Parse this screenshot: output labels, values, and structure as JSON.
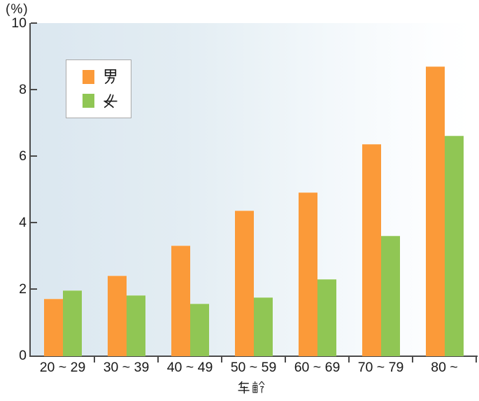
{
  "chart_data": {
    "type": "bar",
    "title": "",
    "categories": [
      "20 ~ 29",
      "30 ~ 39",
      "40 ~ 49",
      "50 ~ 59",
      "60 ~ 69",
      "70 ~ 79",
      "80 ~"
    ],
    "series": [
      {
        "name": "男",
        "key": "male",
        "color": "#FB9A39",
        "values": [
          1.7,
          2.4,
          3.3,
          4.35,
          4.9,
          6.35,
          8.7
        ]
      },
      {
        "name": "女",
        "key": "female",
        "color": "#90C654",
        "values": [
          1.95,
          1.8,
          1.55,
          1.75,
          2.3,
          3.6,
          6.6
        ]
      }
    ],
    "xlabel": "年齢",
    "ylabel": "(%)",
    "ylim": [
      0,
      10
    ],
    "yticks": [
      0,
      2,
      4,
      6,
      8,
      10
    ],
    "grid": false,
    "legend_position": "upper-left-inside",
    "plot_bg_gradient": [
      "#DCE8F1",
      "#FFFFFF"
    ],
    "axis_color": "#4A4A4A",
    "text_color": "#1A1A1A"
  }
}
